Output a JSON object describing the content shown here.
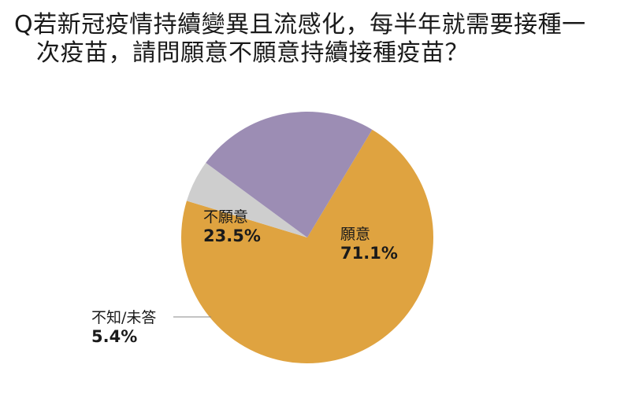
{
  "title_line1": "Q若新冠疫情持續變異且流感化，每半年就需要接種一",
  "title_line2": "次疫苗，請問願意不願意持續接種疫苗？",
  "chart_data": {
    "type": "pie",
    "slices": [
      {
        "label": "願意",
        "value": 71.1,
        "display": "71.1%",
        "color": "#DFA340"
      },
      {
        "label": "不知/未答",
        "value": 5.4,
        "display": "5.4%",
        "color": "#CECECE"
      },
      {
        "label": "不願意",
        "value": 23.5,
        "display": "23.5%",
        "color": "#9C8DB4"
      }
    ],
    "start_angle_deg": 31,
    "direction": "clockwise"
  }
}
